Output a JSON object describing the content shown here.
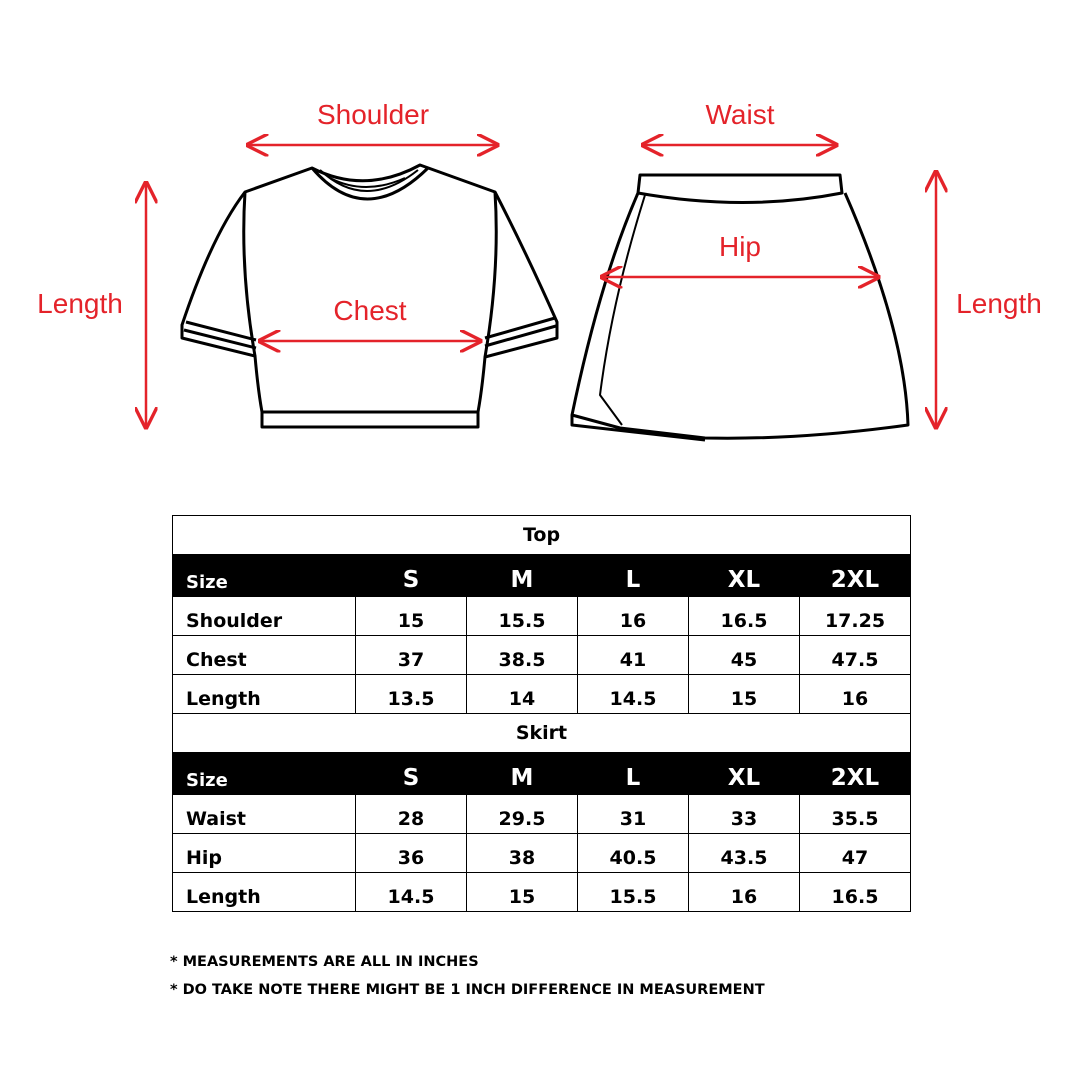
{
  "diagram": {
    "top_labels": {
      "shoulder": "Shoulder",
      "chest": "Chest",
      "length": "Length"
    },
    "skirt_labels": {
      "waist": "Waist",
      "hip": "Hip",
      "length": "Length"
    },
    "arrow_color": "#e4232a"
  },
  "sizes": [
    "S",
    "M",
    "L",
    "XL",
    "2XL"
  ],
  "top": {
    "title": "Top",
    "size_label": "Size",
    "rows": [
      {
        "label": "Shoulder",
        "values": [
          "15",
          "15.5",
          "16",
          "16.5",
          "17.25"
        ]
      },
      {
        "label": "Chest",
        "values": [
          "37",
          "38.5",
          "41",
          "45",
          "47.5"
        ]
      },
      {
        "label": "Length",
        "values": [
          "13.5",
          "14",
          "14.5",
          "15",
          "16"
        ]
      }
    ]
  },
  "skirt": {
    "title": "Skirt",
    "size_label": "Size",
    "rows": [
      {
        "label": "Waist",
        "values": [
          "28",
          "29.5",
          "31",
          "33",
          "35.5"
        ]
      },
      {
        "label": "Hip",
        "values": [
          "36",
          "38",
          "40.5",
          "43.5",
          "47"
        ]
      },
      {
        "label": "Length",
        "values": [
          "14.5",
          "15",
          "15.5",
          "16",
          "16.5"
        ]
      }
    ]
  },
  "notes": [
    "* MEASUREMENTS ARE ALL IN INCHES",
    "* DO TAKE NOTE THERE MIGHT BE 1 INCH DIFFERENCE IN MEASUREMENT"
  ]
}
